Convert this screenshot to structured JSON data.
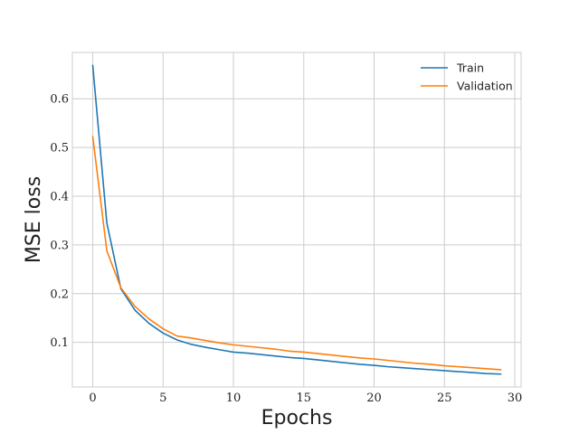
{
  "chart_data": {
    "type": "line",
    "xlabel": "Epochs",
    "ylabel": "MSE loss",
    "xlim": [
      -1.45,
      30.45
    ],
    "ylim": [
      0.0085,
      0.695
    ],
    "xticks": [
      0,
      5,
      10,
      15,
      20,
      25,
      30
    ],
    "yticks": [
      0.1,
      0.2,
      0.3,
      0.4,
      0.5,
      0.6
    ],
    "ytick_labels": [
      "0.1",
      "0.2",
      "0.3",
      "0.4",
      "0.5",
      "0.6"
    ],
    "grid": true,
    "legend_position": "top-right",
    "x": [
      0,
      1,
      2,
      3,
      4,
      5,
      6,
      7,
      8,
      9,
      10,
      11,
      12,
      13,
      14,
      15,
      16,
      17,
      18,
      19,
      20,
      21,
      22,
      23,
      24,
      25,
      26,
      27,
      28,
      29
    ],
    "series": [
      {
        "name": "Train",
        "color": "#1f77b4",
        "values": [
          0.668,
          0.345,
          0.21,
          0.166,
          0.139,
          0.119,
          0.105,
          0.096,
          0.09,
          0.085,
          0.08,
          0.078,
          0.075,
          0.072,
          0.069,
          0.067,
          0.064,
          0.061,
          0.058,
          0.055,
          0.053,
          0.05,
          0.048,
          0.046,
          0.044,
          0.042,
          0.04,
          0.038,
          0.036,
          0.035
        ]
      },
      {
        "name": "Validation",
        "color": "#ff7f0e",
        "values": [
          0.522,
          0.288,
          0.212,
          0.174,
          0.148,
          0.128,
          0.113,
          0.109,
          0.104,
          0.099,
          0.095,
          0.092,
          0.089,
          0.086,
          0.082,
          0.08,
          0.077,
          0.074,
          0.071,
          0.068,
          0.066,
          0.063,
          0.06,
          0.057,
          0.055,
          0.052,
          0.05,
          0.048,
          0.046,
          0.044
        ]
      }
    ]
  }
}
